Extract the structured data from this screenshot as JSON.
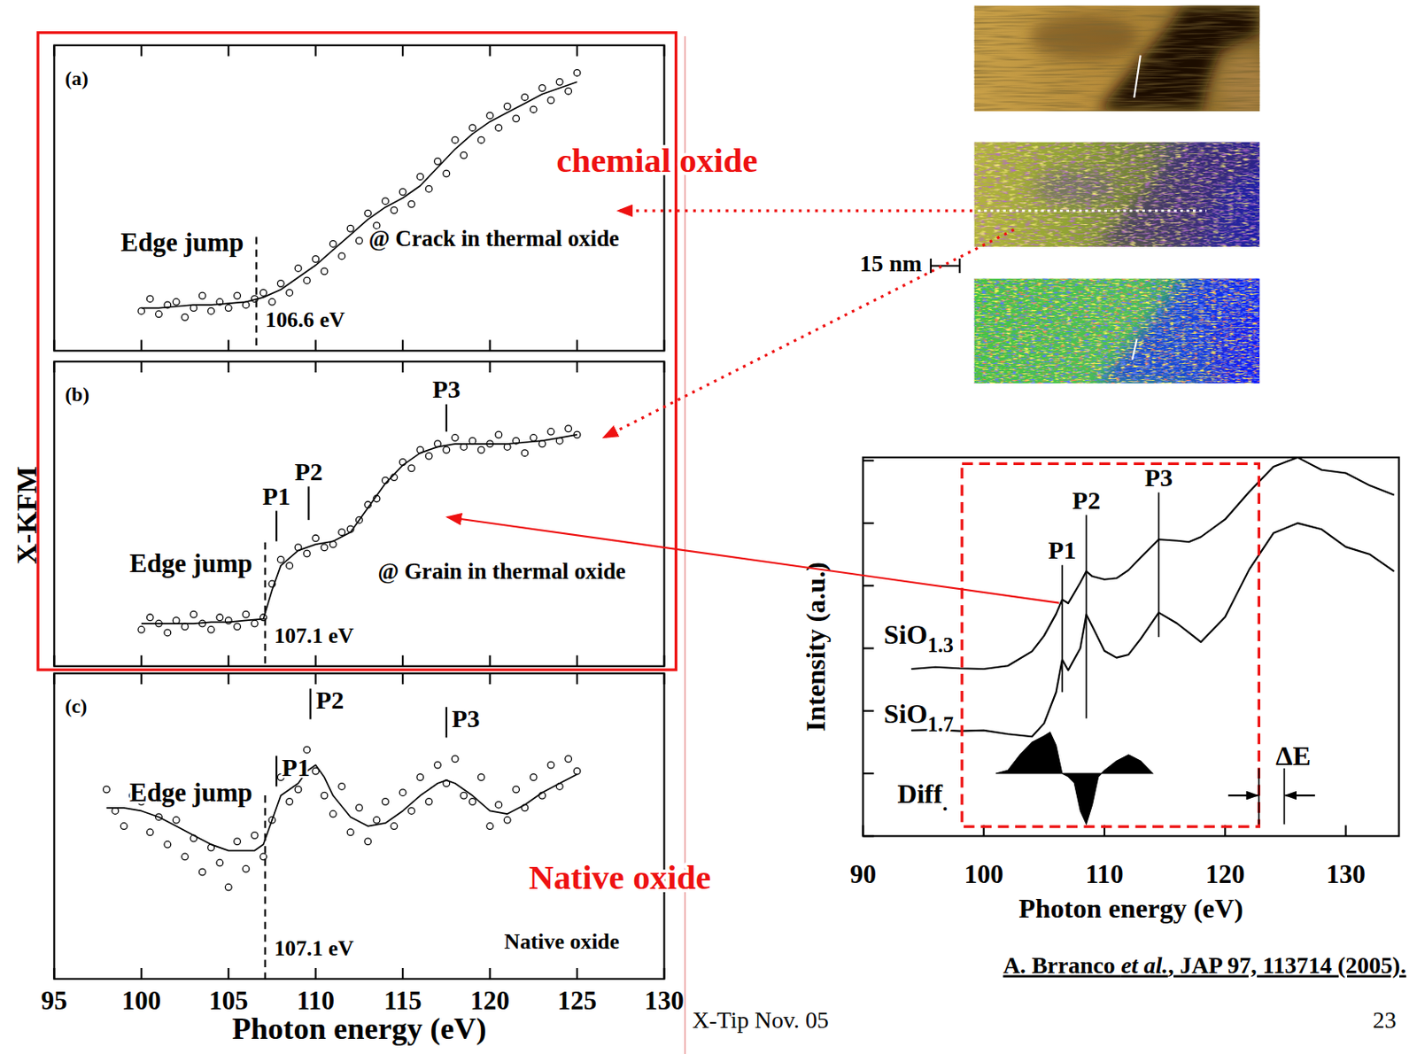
{
  "slide": {
    "side_label": "X-KFM",
    "chemical_label": "chemial oxide",
    "native_label": "Native oxide",
    "scale_bar": "15 nm",
    "footer": "X-Tip Nov. 05",
    "page": "23",
    "citation": [
      {
        "text": "A. Brranco "
      },
      {
        "text": "et al.",
        "italic": true
      },
      {
        "text": ", JAP 97, 113714 (2005)."
      }
    ]
  },
  "chart_data": [
    {
      "type": "scatter",
      "label": "(a)",
      "annotation": "@ Crack in thermal oxide",
      "xlim": [
        95,
        130
      ],
      "xticks": [
        95,
        100,
        105,
        110,
        115,
        120,
        125,
        130
      ],
      "ylim": [
        0,
        100
      ],
      "tick_labels": false,
      "edge": {
        "x": 106.6,
        "label": "Edge jump",
        "value_label": "106.6 eV"
      },
      "series": [
        {
          "type": "scatter",
          "marker": "circle",
          "color": "#000000",
          "x": [
            100,
            100.5,
            101,
            101.5,
            102,
            102.5,
            103,
            103.5,
            104,
            104.5,
            105,
            105.5,
            106,
            106.5,
            107,
            107.5,
            108,
            108.5,
            109,
            109.5,
            110,
            110.5,
            111,
            111.5,
            112,
            112.5,
            113,
            113.5,
            114,
            114.5,
            115,
            115.5,
            116,
            116.5,
            117,
            117.5,
            118,
            118.5,
            119,
            119.5,
            120,
            120.5,
            121,
            121.5,
            122,
            122.5,
            123,
            123.5,
            124,
            124.5,
            125
          ],
          "values": [
            13,
            17,
            12,
            15,
            16,
            11,
            14,
            18,
            13,
            16,
            14,
            18,
            15,
            17,
            19,
            16,
            22,
            19,
            27,
            23,
            30,
            26,
            35,
            31,
            40,
            36,
            45,
            41,
            49,
            46,
            52,
            48,
            57,
            53,
            62,
            58,
            69,
            64,
            73,
            69,
            77,
            73,
            80,
            76,
            83,
            79,
            86,
            82,
            88,
            85,
            91
          ]
        },
        {
          "type": "line",
          "line_style": "solid",
          "color": "#000000",
          "x": [
            100,
            101,
            102,
            103,
            104,
            105,
            106,
            107,
            108,
            109,
            110,
            111,
            112,
            113,
            114,
            115,
            116,
            117,
            118,
            119,
            120,
            121,
            122,
            123,
            124,
            125
          ],
          "values": [
            14,
            14,
            14.5,
            15,
            15,
            15.5,
            16,
            17.5,
            20,
            24,
            28,
            33,
            38,
            43,
            47,
            50,
            54,
            60,
            66,
            71,
            75,
            78,
            81,
            84,
            86,
            88
          ]
        }
      ]
    },
    {
      "type": "scatter",
      "label": "(b)",
      "annotation": "@ Grain in thermal oxide",
      "xlim": [
        95,
        130
      ],
      "xticks": [
        95,
        100,
        105,
        110,
        115,
        120,
        125,
        130
      ],
      "ylim": [
        0,
        100
      ],
      "tick_labels": false,
      "edge": {
        "x": 107.1,
        "label": "Edge jump",
        "value_label": "107.1 eV"
      },
      "peaks": [
        {
          "label": "P1",
          "x": 107.75,
          "y": [
            41,
            51
          ]
        },
        {
          "label": "P2",
          "x": 109.6,
          "y": [
            48,
            59
          ]
        },
        {
          "label": "P3",
          "x": 117.5,
          "y": [
            77,
            86
          ]
        }
      ],
      "series": [
        {
          "type": "scatter",
          "marker": "circle",
          "color": "#000000",
          "x": [
            100,
            100.5,
            101,
            101.5,
            102,
            102.5,
            103,
            103.5,
            104,
            104.5,
            105,
            105.5,
            106,
            106.5,
            107,
            107.5,
            108,
            108.5,
            109,
            109.5,
            110,
            110.5,
            111,
            111.5,
            112,
            112.5,
            113,
            113.5,
            114,
            114.5,
            115,
            115.5,
            116,
            116.5,
            117,
            117.5,
            118,
            118.5,
            119,
            119.5,
            120,
            120.5,
            121,
            121.5,
            122,
            122.5,
            123,
            123.5,
            124,
            124.5,
            125
          ],
          "values": [
            12,
            16,
            14,
            11,
            15,
            13,
            17,
            14,
            12,
            16,
            15,
            13,
            17,
            14,
            16,
            27,
            35,
            33,
            39,
            37,
            42,
            39,
            40,
            44,
            45,
            48,
            53,
            55,
            61,
            62,
            67,
            65,
            71,
            69,
            73,
            71,
            75,
            72,
            74,
            71,
            73,
            76,
            72,
            74,
            70,
            75,
            73,
            77,
            74,
            78,
            76
          ]
        },
        {
          "type": "line",
          "line_style": "solid",
          "color": "#000000",
          "x": [
            100,
            101,
            102,
            103,
            104,
            105,
            106,
            107,
            107.5,
            108,
            109,
            110,
            111,
            112,
            113,
            114,
            115,
            116,
            117,
            118,
            119,
            120,
            121,
            122,
            123,
            124,
            125
          ],
          "values": [
            14,
            14,
            14,
            14,
            14.5,
            14.5,
            15,
            15.5,
            25,
            33,
            38,
            40,
            41,
            44,
            52,
            60,
            66,
            70,
            72,
            73,
            73,
            73,
            73,
            73.5,
            74,
            75,
            76
          ]
        }
      ]
    },
    {
      "type": "scatter",
      "label": "(c)",
      "annotation": "Native oxide",
      "x_label": "Photon energy (eV)",
      "xlim": [
        95,
        130
      ],
      "xticks": [
        95,
        100,
        105,
        110,
        115,
        120,
        125,
        130
      ],
      "ylim": [
        0,
        100
      ],
      "tick_labels": "x",
      "edge": {
        "x": 107.1,
        "label": "Edge jump",
        "value_label": "107.1 eV"
      },
      "peaks": [
        {
          "label": "P1",
          "x": 107.75,
          "y": [
            63,
            73
          ]
        },
        {
          "label": "P2",
          "x": 109.7,
          "y": [
            85,
            95
          ]
        },
        {
          "label": "P3",
          "x": 117.5,
          "y": [
            79,
            89
          ]
        }
      ],
      "series": [
        {
          "type": "scatter",
          "marker": "circle",
          "color": "#000000",
          "x": [
            98,
            98.5,
            99,
            99.5,
            100,
            100.5,
            101,
            101.5,
            102,
            102.5,
            103,
            103.5,
            104,
            104.5,
            105,
            105.5,
            106,
            106.5,
            107,
            107.5,
            108,
            108.5,
            109,
            109.5,
            110,
            110.5,
            111,
            111.5,
            112,
            112.5,
            113,
            113.5,
            114,
            114.5,
            115,
            115.5,
            116,
            116.5,
            117,
            117.5,
            118,
            118.5,
            119,
            119.5,
            120,
            120.5,
            121,
            121.5,
            122,
            122.5,
            123,
            123.5,
            124,
            124.5,
            125
          ],
          "values": [
            62,
            55,
            50,
            60,
            58,
            48,
            53,
            44,
            52,
            40,
            46,
            35,
            43,
            38,
            30,
            45,
            36,
            47,
            40,
            52,
            66,
            58,
            62,
            75,
            68,
            60,
            54,
            63,
            48,
            56,
            45,
            52,
            58,
            50,
            61,
            55,
            66,
            58,
            70,
            64,
            72,
            60,
            58,
            66,
            50,
            57,
            52,
            62,
            56,
            66,
            60,
            70,
            63,
            72,
            68
          ]
        },
        {
          "type": "line",
          "line_style": "solid",
          "color": "#000000",
          "x": [
            98,
            99,
            100,
            101,
            102,
            103,
            104,
            105,
            106,
            106.5,
            107,
            107.5,
            108,
            108.5,
            109,
            109.5,
            110,
            110.5,
            111,
            112,
            113,
            114,
            115,
            116,
            117,
            117.5,
            118,
            119,
            120,
            121,
            122,
            123,
            124,
            125
          ],
          "values": [
            56,
            56,
            55,
            53,
            50,
            47,
            44,
            42,
            42,
            42,
            44,
            52,
            60,
            62,
            64,
            68,
            70,
            66,
            60,
            53,
            50,
            51,
            55,
            60,
            64,
            65,
            64,
            60,
            55,
            54,
            57,
            61,
            64,
            67
          ]
        }
      ]
    },
    {
      "type": "line",
      "x_label": "Photon energy (eV)",
      "y_label": "Intensity (a.u.)",
      "xlim": [
        90,
        134.4
      ],
      "xticks": [
        90,
        100,
        110,
        120,
        130
      ],
      "ylim": [
        0,
        6.05
      ],
      "yticks": [
        0,
        1,
        2,
        3,
        4,
        5,
        6
      ],
      "tick_labels": "x",
      "peaks": [
        {
          "label": "P1",
          "x": 106.5,
          "y": [
            2.3,
            4.33
          ]
        },
        {
          "label": "P2",
          "x": 108.5,
          "y": [
            1.88,
            5.13
          ]
        },
        {
          "label": "P3",
          "x": 114.5,
          "y": [
            3.18,
            5.49
          ]
        }
      ],
      "region": {
        "x": [
          98.2,
          122.8
        ],
        "y": [
          0.15,
          5.95
        ],
        "color": "#ee1111",
        "line_style": "dashed"
      },
      "delta_e": {
        "label": "ΔE",
        "x": [
          122.8,
          124.9
        ],
        "y": 0.65
      },
      "series": [
        {
          "name": "SiO1.3",
          "type": "line",
          "color": "#000000",
          "x": [
            94,
            96,
            98,
            100,
            102,
            104,
            105,
            106,
            106.5,
            107,
            108,
            108.5,
            109,
            110,
            111,
            112,
            113,
            114.5,
            116,
            117,
            118,
            120,
            122,
            124,
            126,
            127,
            128,
            130,
            132,
            134
          ],
          "values": [
            2.67,
            2.7,
            2.68,
            2.67,
            2.72,
            2.95,
            3.2,
            3.55,
            3.78,
            3.72,
            4.05,
            4.23,
            4.15,
            4.1,
            4.12,
            4.25,
            4.45,
            4.74,
            4.72,
            4.7,
            4.78,
            5.06,
            5.5,
            5.9,
            6.05,
            5.95,
            5.85,
            5.8,
            5.6,
            5.45
          ]
        },
        {
          "name": "SiO1.7",
          "type": "line",
          "color": "#000000",
          "x": [
            94,
            96,
            98,
            100,
            102,
            104,
            105,
            106,
            106.5,
            107,
            108,
            108.5,
            109,
            110,
            111,
            112,
            113,
            114.5,
            116,
            117,
            118,
            120,
            122,
            124,
            126,
            128,
            130,
            132,
            134
          ],
          "values": [
            1.69,
            1.7,
            1.68,
            1.69,
            1.63,
            1.59,
            1.8,
            2.3,
            2.82,
            2.65,
            3.0,
            3.54,
            3.35,
            2.96,
            2.85,
            2.9,
            3.15,
            3.57,
            3.4,
            3.25,
            3.1,
            3.5,
            4.26,
            4.84,
            5.0,
            4.9,
            4.62,
            4.5,
            4.23
          ]
        },
        {
          "name": "Diff.",
          "type": "area",
          "color": "#000000",
          "x": [
            101,
            102,
            103,
            104,
            105,
            105.5,
            106,
            106.5,
            107,
            107.5,
            108,
            108.5,
            109,
            109.5,
            110,
            111,
            112,
            112.5,
            113,
            113.5,
            114
          ],
          "values": [
            1.0,
            1.05,
            1.3,
            1.5,
            1.6,
            1.66,
            1.45,
            1.0,
            0.95,
            0.85,
            0.4,
            0.19,
            0.5,
            0.95,
            1.05,
            1.2,
            1.3,
            1.25,
            1.2,
            1.1,
            1.0
          ]
        }
      ]
    }
  ]
}
